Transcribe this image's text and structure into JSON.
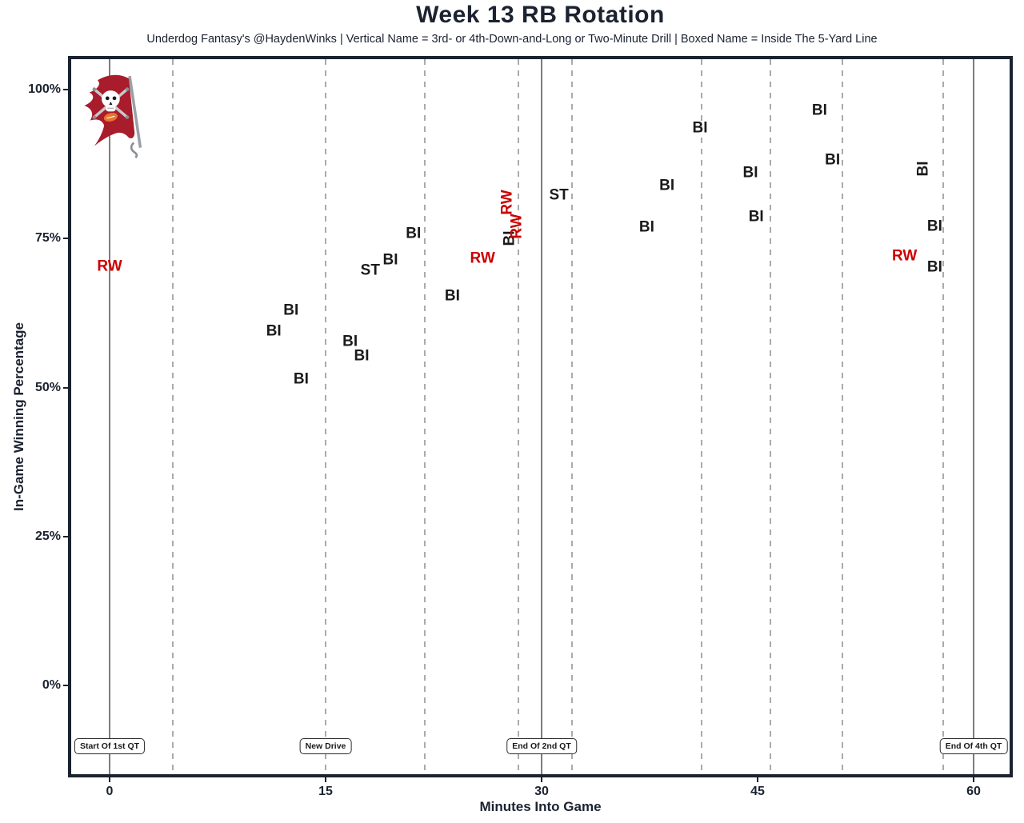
{
  "page": {
    "title": "Week 13 RB Rotation",
    "subtitle": "Underdog Fantasy's @HaydenWinks | Vertical Name = 3rd- or 4th-Down-and-Long or Two-Minute Drill | Boxed Name = Inside The 5-Yard Line"
  },
  "axes": {
    "x": {
      "label": "Minutes Into Game",
      "ticks": [
        0,
        15,
        30,
        45,
        60
      ]
    },
    "y": {
      "label": "In-Game Winning Percentage",
      "ticks": [
        {
          "value": 0,
          "label": "0%"
        },
        {
          "value": 25,
          "label": "25%"
        },
        {
          "value": 50,
          "label": "50%"
        },
        {
          "value": 75,
          "label": "75%"
        },
        {
          "value": 100,
          "label": "100%"
        }
      ]
    }
  },
  "team_logo": "tampa-bay-buccaneers-flag",
  "colors": {
    "dark_text": "#1b2230",
    "label_black": "#1a1a1a",
    "label_red": "#cc0000",
    "solid_line_gray": "#7c7c7c",
    "dashed_line_gray": "#ababab",
    "flag_red": "#a81c2c",
    "football_orange": "#e8742c"
  },
  "annotations": [
    {
      "label": "Start Of 1st QT",
      "minute": 0
    },
    {
      "label": "New Drive",
      "minute": 15
    },
    {
      "label": "End Of 2nd QT",
      "minute": 30
    },
    {
      "label": "End Of 4th QT",
      "minute": 60
    }
  ],
  "reference_lines": {
    "solid_quarter_minutes": [
      0,
      30,
      60
    ],
    "dashed_drive_minutes": [
      4.4,
      15,
      21.9,
      28.4,
      32.1,
      41.1,
      45.9,
      50.9,
      57.9
    ]
  },
  "chart_data": {
    "type": "scatter",
    "title": "Week 13 RB Rotation",
    "xlabel": "Minutes Into Game",
    "ylabel": "In-Game Winning Percentage",
    "xlim": [
      -2.9,
      62.7
    ],
    "ylim": [
      -15.4,
      105.1
    ],
    "grid": "vertical drive/quarter lines only",
    "legend_position": "none (encoded in subtitle)",
    "marker_encoding": {
      "red": "RW",
      "black": "BI, ST",
      "vertical_text": "3rd- or 4th-Down-and-Long or Two-Minute Drill",
      "boxed_text": "Inside The 5-Yard Line"
    },
    "points": [
      {
        "player": "RW",
        "minute": 0.0,
        "win_pct": 70.3,
        "color": "red",
        "vertical": false
      },
      {
        "player": "BI",
        "minute": 11.4,
        "win_pct": 59.5,
        "color": "black",
        "vertical": false
      },
      {
        "player": "BI",
        "minute": 12.6,
        "win_pct": 63.0,
        "color": "black",
        "vertical": false
      },
      {
        "player": "BI",
        "minute": 13.3,
        "win_pct": 51.4,
        "color": "black",
        "vertical": false
      },
      {
        "player": "BI",
        "minute": 16.7,
        "win_pct": 57.7,
        "color": "black",
        "vertical": false
      },
      {
        "player": "BI",
        "minute": 17.5,
        "win_pct": 55.3,
        "color": "black",
        "vertical": false
      },
      {
        "player": "ST",
        "minute": 18.1,
        "win_pct": 69.7,
        "color": "black",
        "vertical": false
      },
      {
        "player": "BI",
        "minute": 19.5,
        "win_pct": 71.4,
        "color": "black",
        "vertical": false
      },
      {
        "player": "BI",
        "minute": 21.1,
        "win_pct": 75.8,
        "color": "black",
        "vertical": false
      },
      {
        "player": "BI",
        "minute": 23.8,
        "win_pct": 65.4,
        "color": "black",
        "vertical": false
      },
      {
        "player": "RW",
        "minute": 25.9,
        "win_pct": 71.7,
        "color": "red",
        "vertical": false
      },
      {
        "player": "RW",
        "minute": 27.6,
        "win_pct": 81.1,
        "color": "red",
        "vertical": true
      },
      {
        "player": "BI",
        "minute": 27.8,
        "win_pct": 75.0,
        "color": "black",
        "vertical": true
      },
      {
        "player": "RW",
        "minute": 28.3,
        "win_pct": 77.0,
        "color": "red",
        "vertical": true
      },
      {
        "player": "ST",
        "minute": 31.2,
        "win_pct": 82.3,
        "color": "black",
        "vertical": false
      },
      {
        "player": "BI",
        "minute": 37.3,
        "win_pct": 76.9,
        "color": "black",
        "vertical": false
      },
      {
        "player": "BI",
        "minute": 38.7,
        "win_pct": 83.9,
        "color": "black",
        "vertical": false
      },
      {
        "player": "BI",
        "minute": 41.0,
        "win_pct": 93.6,
        "color": "black",
        "vertical": false
      },
      {
        "player": "BI",
        "minute": 44.5,
        "win_pct": 86.0,
        "color": "black",
        "vertical": false
      },
      {
        "player": "BI",
        "minute": 44.9,
        "win_pct": 78.7,
        "color": "black",
        "vertical": false
      },
      {
        "player": "BI",
        "minute": 49.3,
        "win_pct": 96.5,
        "color": "black",
        "vertical": false
      },
      {
        "player": "BI",
        "minute": 50.2,
        "win_pct": 88.2,
        "color": "black",
        "vertical": false
      },
      {
        "player": "RW",
        "minute": 55.2,
        "win_pct": 72.1,
        "color": "red",
        "vertical": false
      },
      {
        "player": "BI",
        "minute": 56.5,
        "win_pct": 86.7,
        "color": "black",
        "vertical": true
      },
      {
        "player": "BI",
        "minute": 57.3,
        "win_pct": 77.0,
        "color": "black",
        "vertical": false
      },
      {
        "player": "BI",
        "minute": 57.3,
        "win_pct": 70.2,
        "color": "black",
        "vertical": false
      }
    ]
  }
}
